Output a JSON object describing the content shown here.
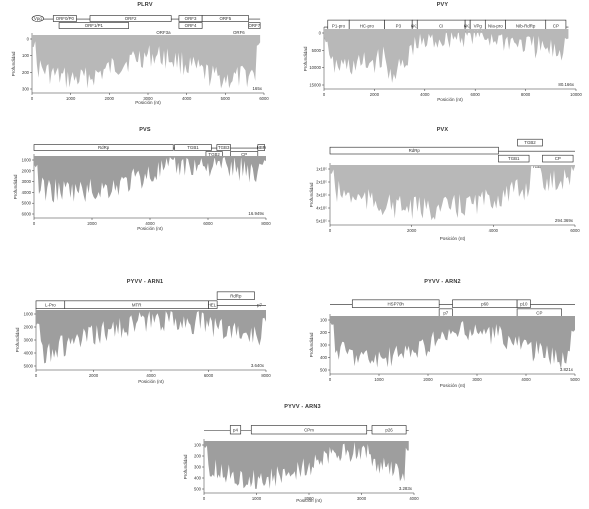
{
  "chart_data": [
    {
      "type": "area",
      "title": "PLRV",
      "xlabel": "Posición (nt)",
      "ylabel": "Profundidad",
      "coverage": "165x",
      "xlim": [
        0,
        6000
      ],
      "ylim": [
        0,
        400
      ],
      "xticks": [
        "0",
        "1000",
        "2000",
        "3000",
        "4000",
        "5000",
        "6000"
      ],
      "yticks": [
        "0",
        "100",
        "200",
        "300"
      ],
      "fill_color": "#b8b8b8",
      "genome_length": 5900,
      "genes": [
        {
          "name": "Vpg",
          "start": 0,
          "end": 300,
          "row": 0,
          "shape": "ellipse"
        },
        {
          "name": "ORF0/P0",
          "start": 550,
          "end": 1150,
          "row": 0
        },
        {
          "name": "ORF1/P1",
          "start": 700,
          "end": 2500,
          "row": 1
        },
        {
          "name": "ORF2",
          "start": 1500,
          "end": 3600,
          "row": 0
        },
        {
          "name": "ORF3",
          "start": 3800,
          "end": 4400,
          "row": 0
        },
        {
          "name": "ORF4",
          "start": 3800,
          "end": 4400,
          "row": 1
        },
        {
          "name": "ORF3a",
          "start": 3100,
          "end": 3700,
          "row": 2,
          "text_only": true
        },
        {
          "name": "ORF5",
          "start": 4400,
          "end": 5600,
          "row": 0
        },
        {
          "name": "ORF7",
          "start": 5600,
          "end": 5900,
          "row": 1
        },
        {
          "name": "ORF6",
          "start": 5100,
          "end": 5600,
          "row": 2,
          "text_only": true
        }
      ]
    },
    {
      "type": "area",
      "title": "PVY",
      "xlabel": "Posición (nt)",
      "ylabel": "Profundidad",
      "coverage": "80.166x",
      "xlim": [
        0,
        10000
      ],
      "ylim": [
        0,
        15000
      ],
      "xticks": [
        "0",
        "2000",
        "4000",
        "6000",
        "8000",
        "10000"
      ],
      "yticks": [
        "0",
        "5000",
        "10000",
        "15000"
      ],
      "fill_color": "#b8b8b8",
      "genome_length": 9700,
      "genes": [
        {
          "name": "P1-pro",
          "start": 150,
          "end": 1000,
          "row": 0
        },
        {
          "name": "HC-pro",
          "start": 1000,
          "end": 2400,
          "row": 0
        },
        {
          "name": "P3",
          "start": 2400,
          "end": 3500,
          "row": 0
        },
        {
          "name": "6K1",
          "start": 3500,
          "end": 3700,
          "row": 0
        },
        {
          "name": "CI",
          "start": 3700,
          "end": 5600,
          "row": 0
        },
        {
          "name": "6K2",
          "start": 5600,
          "end": 5800,
          "row": 0
        },
        {
          "name": "VPg",
          "start": 5800,
          "end": 6400,
          "row": 0
        },
        {
          "name": "NIa-pro",
          "start": 6400,
          "end": 7200,
          "row": 0
        },
        {
          "name": "NIb-RdRp",
          "start": 7200,
          "end": 8800,
          "row": 0
        },
        {
          "name": "CP",
          "start": 8800,
          "end": 9600,
          "row": 0
        }
      ]
    },
    {
      "type": "area",
      "title": "PVS",
      "xlabel": "Posición (nt)",
      "ylabel": "Profundidad",
      "coverage": "16.949x",
      "xlim": [
        0,
        8500
      ],
      "ylim": [
        0,
        7000
      ],
      "xticks": [
        "0",
        "2000",
        "4000",
        "6000",
        "8000"
      ],
      "yticks": [
        "1000",
        "2000",
        "3000",
        "4000",
        "5000",
        "6000"
      ],
      "fill_color": "#9e9e9e",
      "genome_length": 8500,
      "genes": [
        {
          "name": "RdRp",
          "start": 0,
          "end": 5100,
          "row": 0
        },
        {
          "name": "TGB1",
          "start": 5150,
          "end": 6500,
          "row": 0
        },
        {
          "name": "TGB2",
          "start": 6300,
          "end": 6900,
          "row": 1
        },
        {
          "name": "TGB3",
          "start": 6700,
          "end": 7200,
          "row": 0
        },
        {
          "name": "CP",
          "start": 7200,
          "end": 8200,
          "row": 1
        },
        {
          "name": "NBP",
          "start": 8200,
          "end": 8450,
          "row": 0
        }
      ]
    },
    {
      "type": "area",
      "title": "PVX",
      "xlabel": "Posición (nt)",
      "ylabel": "Profundidad",
      "coverage": "294.369x",
      "xlim": [
        0,
        6400
      ],
      "ylim": [
        0,
        600000
      ],
      "xticks": [
        "0",
        "2000",
        "4000",
        "6000"
      ],
      "yticks": [
        "1x10⁵",
        "2x10⁵",
        "3x10⁵",
        "4x10⁵",
        "5x10⁵"
      ],
      "fill_color": "#b8b8b8",
      "genome_length": 6400,
      "genes": [
        {
          "name": "RdRp",
          "start": 0,
          "end": 4400,
          "row": 0
        },
        {
          "name": "TGB2",
          "start": 4900,
          "end": 5550,
          "row": -1
        },
        {
          "name": "TGB1",
          "start": 4400,
          "end": 5200,
          "row": 1
        },
        {
          "name": "TGB3",
          "start": 5200,
          "end": 5650,
          "row": 2,
          "text_only": true
        },
        {
          "name": "CP",
          "start": 5550,
          "end": 6350,
          "row": 1
        }
      ]
    },
    {
      "type": "area",
      "title": "PYVV - ARN1",
      "xlabel": "Posición (nt)",
      "ylabel": "Profundidad",
      "coverage": "3.640x",
      "xlim": [
        0,
        8000
      ],
      "ylim": [
        0,
        5000
      ],
      "xticks": [
        "0",
        "2000",
        "4000",
        "6000",
        "8000"
      ],
      "yticks": [
        "1000",
        "2000",
        "3000",
        "4000",
        "5000"
      ],
      "fill_color": "#9e9e9e",
      "genome_length": 8000,
      "genes": [
        {
          "name": "L-Pro",
          "start": 0,
          "end": 1000,
          "row": 0
        },
        {
          "name": "MTR",
          "start": 1000,
          "end": 6000,
          "row": 0
        },
        {
          "name": "HEL",
          "start": 6000,
          "end": 6300,
          "row": 0,
          "label_right": true
        },
        {
          "name": "RdRp",
          "start": 6300,
          "end": 7600,
          "row": -1
        },
        {
          "name": "p7",
          "start": 7600,
          "end": 7950,
          "row": 0,
          "text_only": true
        }
      ]
    },
    {
      "type": "area",
      "title": "PYVV - ARN2",
      "xlabel": "Posición (nt)",
      "ylabel": "Profundidad",
      "coverage": "3.821x",
      "xlim": [
        0,
        5500
      ],
      "ylim": [
        0,
        520
      ],
      "xticks": [
        "0",
        "1000",
        "2000",
        "3000",
        "4000",
        "5000"
      ],
      "yticks": [
        "100",
        "200",
        "300",
        "400",
        "500"
      ],
      "fill_color": "#9e9e9e",
      "genome_length": 5500,
      "genes": [
        {
          "name": "HSP70h",
          "start": 500,
          "end": 2450,
          "row": 0
        },
        {
          "name": "p7",
          "start": 2450,
          "end": 2750,
          "row": 1
        },
        {
          "name": "p60",
          "start": 2750,
          "end": 4200,
          "row": 0
        },
        {
          "name": "p10",
          "start": 4200,
          "end": 4500,
          "row": 0
        },
        {
          "name": "CP",
          "start": 4200,
          "end": 5200,
          "row": 1
        }
      ]
    },
    {
      "type": "area",
      "title": "PYVV - ARN3",
      "xlabel": "Posición (nt)",
      "ylabel": "Profundidad",
      "coverage": "3.283x",
      "xlim": [
        0,
        4000
      ],
      "ylim": [
        0,
        520
      ],
      "xticks": [
        "0",
        "1000",
        "2000",
        "3000",
        "4000"
      ],
      "yticks": [
        "100",
        "200",
        "300",
        "400",
        "500"
      ],
      "fill_color": "#9e9e9e",
      "genome_length": 3900,
      "genes": [
        {
          "name": "p4",
          "start": 500,
          "end": 700,
          "row": 0
        },
        {
          "name": "CPm",
          "start": 900,
          "end": 3100,
          "row": 0
        },
        {
          "name": "p26",
          "start": 3200,
          "end": 3850,
          "row": 0
        }
      ]
    }
  ]
}
